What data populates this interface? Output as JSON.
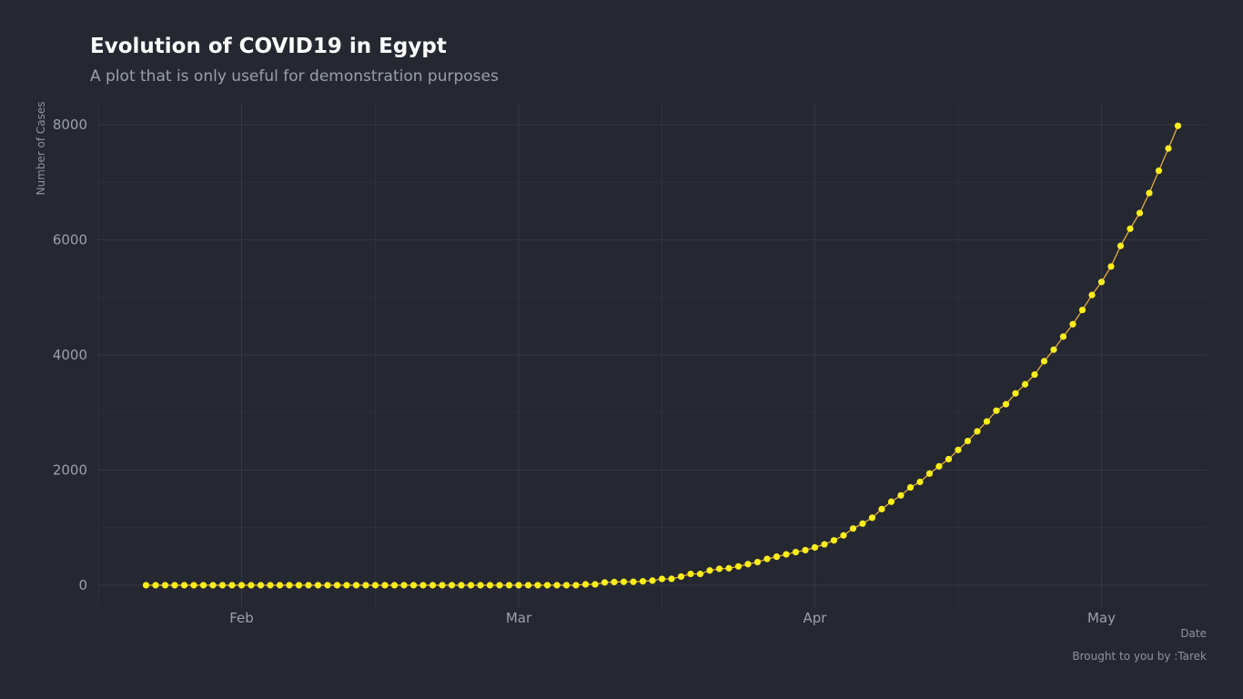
{
  "chart_data": {
    "type": "line",
    "title": "Evolution of COVID19 in  Egypt",
    "subtitle": "A plot that is only useful for demonstration purposes",
    "xlabel": "Date",
    "ylabel": "Number of Cases",
    "caption": "Brought to you by :Tarek",
    "x_tick_labels": [
      "Feb",
      "Mar",
      "Apr",
      "May"
    ],
    "x_ticks": [
      "2020-02-01",
      "2020-03-01",
      "2020-04-01",
      "2020-05-01"
    ],
    "x_minor_ticks": [
      "2020-02-15",
      "2020-03-16",
      "2020-04-16"
    ],
    "xlim": [
      "2020-01-17",
      "2020-05-12"
    ],
    "y_ticks": [
      0,
      2000,
      4000,
      6000,
      8000
    ],
    "ylim": [
      -380,
      8380
    ],
    "grid": true,
    "colors": {
      "background": "#252831",
      "grid_major": "#343843",
      "grid_minor": "#2d313b",
      "line": "#f2b640",
      "marker": "#ffee1a"
    },
    "series": [
      {
        "start_date": "2020-01-22",
        "values": [
          0,
          0,
          0,
          0,
          0,
          0,
          0,
          0,
          0,
          0,
          0,
          0,
          0,
          0,
          0,
          0,
          0,
          0,
          0,
          0,
          0,
          0,
          0,
          0,
          0,
          0,
          0,
          0,
          0,
          0,
          0,
          0,
          0,
          0,
          0,
          0,
          0,
          0,
          0,
          0,
          0,
          0,
          0,
          0,
          0,
          0,
          15,
          15,
          48,
          55,
          59,
          59,
          67,
          80,
          109,
          110,
          150,
          196,
          196,
          256,
          285,
          294,
          327,
          366,
          402,
          456,
          495,
          536,
          576,
          609,
          656,
          710,
          779,
          865,
          985,
          1070,
          1173,
          1322,
          1450,
          1560,
          1699,
          1794,
          1939,
          2065,
          2190,
          2350,
          2505,
          2673,
          2844,
          3032,
          3144,
          3333,
          3490,
          3659,
          3891,
          4092,
          4319,
          4534,
          4782,
          5042,
          5268,
          5537,
          5895,
          6193,
          6465,
          6813,
          7201,
          7588,
          7981
        ]
      }
    ]
  }
}
